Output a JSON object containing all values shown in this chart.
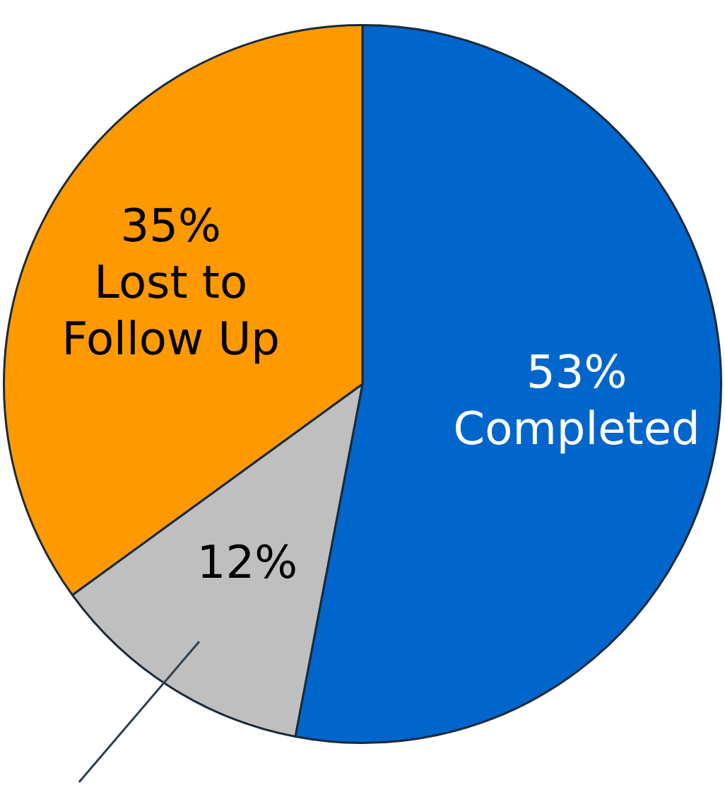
{
  "chart_data": {
    "type": "pie",
    "categories": [
      "Completed",
      null,
      "Lost to Follow Up"
    ],
    "values": [
      53,
      12,
      35
    ],
    "colors": [
      "#0066cc",
      "#bfbfbf",
      "#ff9900"
    ],
    "value_labels": [
      "53%",
      "12%",
      "35%"
    ]
  }
}
